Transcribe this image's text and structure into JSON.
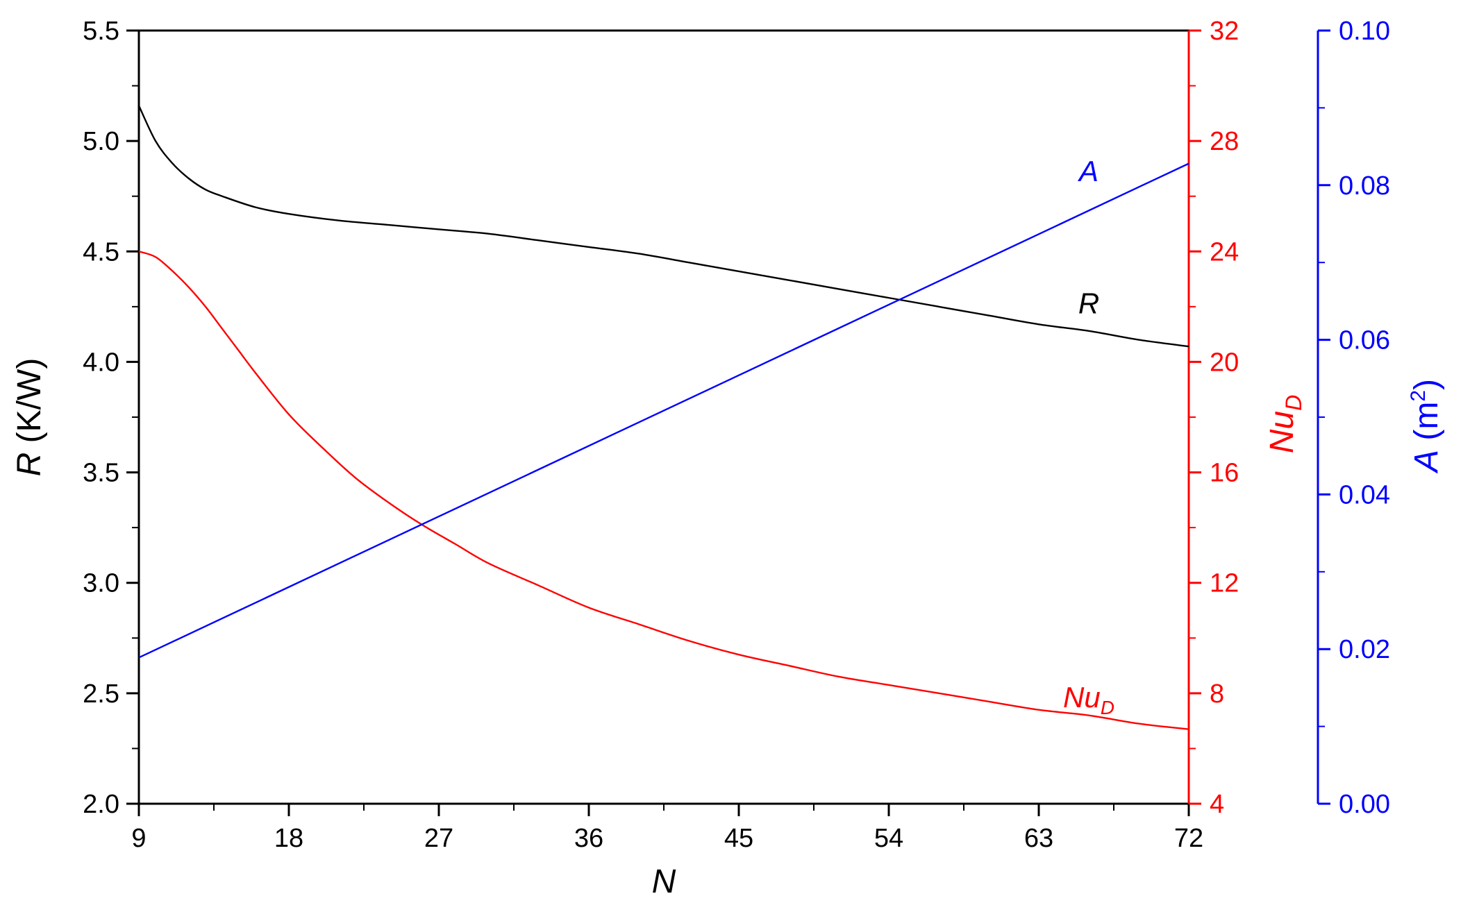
{
  "chart_data": {
    "type": "line",
    "x_axis": {
      "label": "N",
      "range": [
        9,
        72
      ],
      "ticks": [
        9,
        18,
        27,
        36,
        45,
        54,
        63,
        72
      ],
      "tick_labels": [
        "9",
        "18",
        "27",
        "36",
        "45",
        "54",
        "63",
        "72"
      ]
    },
    "y_axes": {
      "R": {
        "label_symbol": "R",
        "label_unit": "(K/W)",
        "color": "#000000",
        "range": [
          2.0,
          5.5
        ],
        "ticks": [
          2.0,
          2.5,
          3.0,
          3.5,
          4.0,
          4.5,
          5.0,
          5.5
        ],
        "tick_labels": [
          "2.0",
          "2.5",
          "3.0",
          "3.5",
          "4.0",
          "4.5",
          "5.0",
          "5.5"
        ]
      },
      "NuD": {
        "label_symbol": "Nu",
        "label_sub": "D",
        "color": "#ff0000",
        "range": [
          4,
          32
        ],
        "ticks": [
          4,
          8,
          12,
          16,
          20,
          24,
          28,
          32
        ],
        "tick_labels": [
          "4",
          "8",
          "12",
          "16",
          "20",
          "24",
          "28",
          "32"
        ]
      },
      "A": {
        "label_symbol": "A",
        "label_unit": "(m",
        "label_sup": "2",
        "label_close": ")",
        "color": "#0000ff",
        "range": [
          0.0,
          0.1
        ],
        "ticks": [
          0.0,
          0.02,
          0.04,
          0.06,
          0.08,
          0.1
        ],
        "tick_labels": [
          "0.00",
          "0.02",
          "0.04",
          "0.06",
          "0.08",
          "0.10"
        ]
      }
    },
    "series": [
      {
        "name": "R",
        "axis": "R",
        "color": "#000000",
        "x": [
          9,
          10,
          11,
          12,
          13,
          14,
          16,
          18,
          21,
          24,
          27,
          30,
          33,
          36,
          39,
          42,
          45,
          48,
          51,
          54,
          57,
          60,
          63,
          66,
          69,
          72
        ],
        "y": [
          5.16,
          5.0,
          4.9,
          4.83,
          4.78,
          4.75,
          4.7,
          4.67,
          4.64,
          4.62,
          4.6,
          4.58,
          4.55,
          4.52,
          4.49,
          4.45,
          4.41,
          4.37,
          4.33,
          4.29,
          4.25,
          4.21,
          4.17,
          4.14,
          4.1,
          4.07
        ]
      },
      {
        "name": "Nu",
        "name_sub": "D",
        "axis": "NuD",
        "color": "#ff0000",
        "x": [
          9,
          10,
          11,
          12,
          13,
          14,
          15,
          16,
          18,
          20,
          22,
          24,
          26,
          28,
          30,
          33,
          36,
          39,
          42,
          45,
          48,
          51,
          54,
          57,
          60,
          63,
          66,
          69,
          72
        ],
        "y": [
          24.0,
          23.8,
          23.3,
          22.7,
          22.0,
          21.2,
          20.4,
          19.6,
          18.1,
          16.9,
          15.8,
          14.9,
          14.1,
          13.4,
          12.7,
          11.9,
          11.1,
          10.5,
          9.9,
          9.4,
          9.0,
          8.6,
          8.3,
          8.0,
          7.7,
          7.4,
          7.2,
          6.9,
          6.7
        ]
      },
      {
        "name": "A",
        "axis": "A",
        "color": "#0000ff",
        "x": [
          9,
          72
        ],
        "y": [
          0.0189,
          0.0828
        ]
      }
    ],
    "labels": {
      "R": {
        "text": "R",
        "x": 66,
        "y_value": 4.22,
        "axis": "R"
      },
      "A": {
        "text": "A",
        "x": 66,
        "y_value": 0.0805,
        "axis": "A"
      },
      "NuD": {
        "text": "Nu",
        "sub": "D",
        "x": 66,
        "y_value": 7.5,
        "axis": "NuD"
      }
    },
    "grid": false,
    "legend": "none"
  }
}
